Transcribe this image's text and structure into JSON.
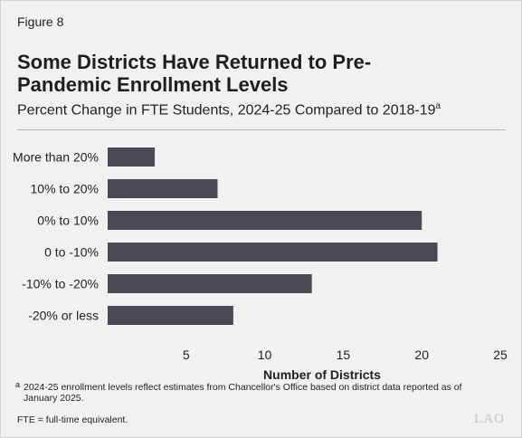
{
  "figure_label": "Figure 8",
  "title": "Some Districts Have Returned to Pre-Pandemic Enrollment Levels",
  "subtitle": "Percent Change in FTE Students, 2024-25 Compared to 2018-19",
  "subtitle_sup": "a",
  "chart_data": {
    "type": "bar",
    "orientation": "horizontal",
    "categories": [
      "More than 20%",
      "10% to 20%",
      "0% to 10%",
      "0 to -10%",
      "-10% to -20%",
      "-20% or less"
    ],
    "values": [
      3,
      7,
      20,
      21,
      13,
      8
    ],
    "xlabel": "Number of Districts",
    "xlim": [
      0,
      25
    ],
    "xticks": [
      5,
      10,
      15,
      20,
      25
    ],
    "tick_labels": [
      "5",
      "10",
      "15",
      "20",
      "25"
    ],
    "grid": false,
    "bar_color": "#4a4955"
  },
  "footnote_marker": "a",
  "footnote": "2024-25 enrollment levels reflect estimates from Chancellor's Office based on district data reported as of January 2025.",
  "fte_note": "FTE = full-time equivalent.",
  "logo_text": "LAO"
}
